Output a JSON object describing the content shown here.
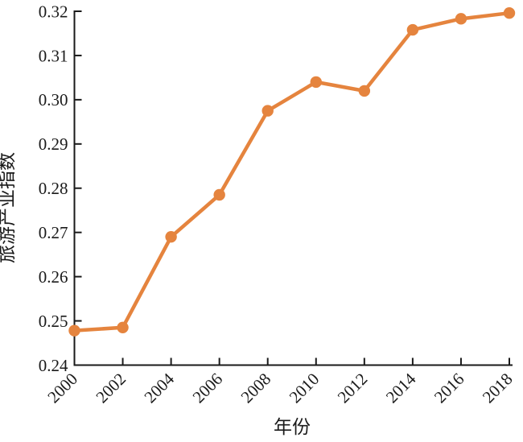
{
  "chart_data": {
    "type": "line",
    "title": "",
    "xlabel": "年份",
    "ylabel": "旅游产业指数",
    "x": [
      2000,
      2002,
      2004,
      2006,
      2008,
      2010,
      2012,
      2014,
      2016,
      2018
    ],
    "series": [
      {
        "name": "旅游产业指数",
        "values": [
          0.2478,
          0.2485,
          0.269,
          0.2785,
          0.2975,
          0.304,
          0.302,
          0.3158,
          0.3183,
          0.3196
        ]
      }
    ],
    "xlim": [
      2000,
      2018
    ],
    "ylim": [
      0.24,
      0.32
    ],
    "x_ticks": [
      2000,
      2002,
      2004,
      2006,
      2008,
      2010,
      2012,
      2014,
      2016,
      2018
    ],
    "y_ticks": [
      0.24,
      0.25,
      0.26,
      0.27,
      0.28,
      0.29,
      0.3,
      0.31,
      0.32
    ],
    "y_tick_decimals": 2,
    "x_tick_rotation_deg": -45,
    "grid": false,
    "legend_position": "none",
    "line_color": "#E5843E",
    "marker": "circle",
    "marker_color": "#E5843E",
    "axis_color": "#1a1a1a",
    "text_color": "#1a1a1a",
    "background_color": "#ffffff"
  }
}
